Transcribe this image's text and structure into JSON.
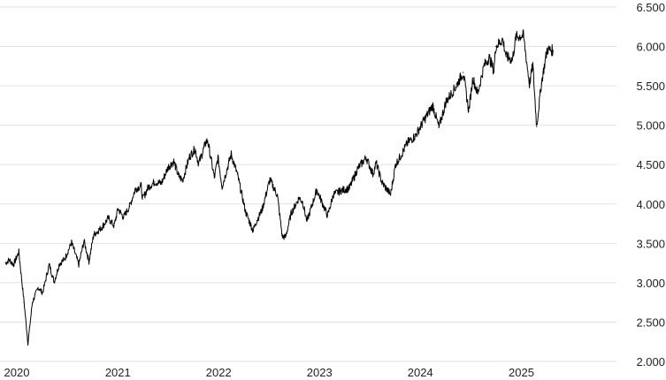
{
  "chart_data": {
    "type": "line",
    "title": "",
    "xlabel": "",
    "ylabel": "",
    "x_tick_labels": [
      "2020",
      "2021",
      "2022",
      "2023",
      "2024",
      "2025"
    ],
    "y_tick_labels": [
      "2.000",
      "2.500",
      "3.000",
      "3.500",
      "4.000",
      "4.500",
      "5.000",
      "5.500",
      "6.000",
      "6.500"
    ],
    "y_ticks": [
      2000,
      2500,
      3000,
      3500,
      4000,
      4500,
      5000,
      5500,
      6000,
      6500
    ],
    "ylim": [
      2000,
      6500
    ],
    "xlim": [
      "2020-01-01",
      "2026-01-01"
    ],
    "grid": "horizontal",
    "line_color": "#000000",
    "grid_color": "#e2e2e2",
    "series": [
      {
        "x": [
          "2020-01-02",
          "2020-01-15",
          "2020-01-31",
          "2020-02-19",
          "2020-03-09",
          "2020-03-23",
          "2020-04-08",
          "2020-04-29",
          "2020-05-15",
          "2020-06-08",
          "2020-06-26",
          "2020-07-15",
          "2020-08-03",
          "2020-08-28",
          "2020-09-23",
          "2020-10-12",
          "2020-10-30",
          "2020-11-16",
          "2020-12-15",
          "2021-01-08",
          "2021-01-29",
          "2021-02-12",
          "2021-03-04",
          "2021-03-26",
          "2021-04-16",
          "2021-05-07",
          "2021-05-12",
          "2021-06-01",
          "2021-06-25",
          "2021-07-19",
          "2021-08-13",
          "2021-09-02",
          "2021-09-20",
          "2021-10-04",
          "2021-10-29",
          "2021-11-18",
          "2021-12-01",
          "2021-12-28",
          "2022-01-03",
          "2022-01-27",
          "2022-02-09",
          "2022-02-24",
          "2022-03-29",
          "2022-04-20",
          "2022-05-20",
          "2022-06-16",
          "2022-06-30",
          "2022-07-19",
          "2022-08-16",
          "2022-09-12",
          "2022-09-30",
          "2022-10-12",
          "2022-11-01",
          "2022-11-30",
          "2022-12-13",
          "2022-12-28",
          "2023-01-17",
          "2023-02-02",
          "2023-03-13",
          "2023-04-03",
          "2023-05-01",
          "2023-05-31",
          "2023-06-30",
          "2023-07-31",
          "2023-08-24",
          "2023-09-05",
          "2023-09-26",
          "2023-10-27",
          "2023-11-14",
          "2023-12-01",
          "2023-12-28",
          "2024-01-24",
          "2024-02-28",
          "2024-03-28",
          "2024-04-19",
          "2024-05-15",
          "2024-06-18",
          "2024-07-16",
          "2024-08-05",
          "2024-08-20",
          "2024-09-06",
          "2024-09-30",
          "2024-10-18",
          "2024-11-04",
          "2024-11-11",
          "2024-12-06",
          "2024-12-19",
          "2025-01-10",
          "2025-01-23",
          "2025-02-19",
          "2025-03-13",
          "2025-03-25",
          "2025-04-08",
          "2025-04-25",
          "2025-05-16",
          "2025-06-06"
        ],
        "y": [
          3250,
          3290,
          3230,
          3390,
          2750,
          2230,
          2750,
          2940,
          2870,
          3230,
          3010,
          3240,
          3300,
          3510,
          3230,
          3530,
          3270,
          3610,
          3700,
          3820,
          3720,
          3940,
          3830,
          3970,
          4190,
          4230,
          4060,
          4210,
          4280,
          4260,
          4470,
          4540,
          4350,
          4300,
          4600,
          4700,
          4510,
          4790,
          4800,
          4330,
          4590,
          4220,
          4630,
          4380,
          3900,
          3660,
          3790,
          3930,
          4310,
          4110,
          3585,
          3580,
          3880,
          4080,
          4020,
          3780,
          4000,
          4180,
          3850,
          4120,
          4170,
          4200,
          4450,
          4590,
          4380,
          4520,
          4270,
          4120,
          4500,
          4600,
          4780,
          4860,
          5080,
          5250,
          4970,
          5300,
          5480,
          5670,
          5180,
          5600,
          5400,
          5760,
          5860,
          5690,
          6000,
          6090,
          5870,
          5830,
          6120,
          6140,
          5520,
          5770,
          4980,
          5530,
          5960,
          5950
        ],
        "values": [
          3250,
          3290,
          3230,
          3390,
          2750,
          2230,
          2750,
          2940,
          2870,
          3230,
          3010,
          3240,
          3300,
          3510,
          3230,
          3530,
          3270,
          3610,
          3700,
          3820,
          3720,
          3940,
          3830,
          3970,
          4190,
          4230,
          4060,
          4210,
          4280,
          4260,
          4470,
          4540,
          4350,
          4300,
          4600,
          4700,
          4510,
          4790,
          4800,
          4330,
          4590,
          4220,
          4630,
          4380,
          3900,
          3660,
          3790,
          3930,
          4310,
          4110,
          3585,
          3580,
          3880,
          4080,
          4020,
          3780,
          4000,
          4180,
          3850,
          4120,
          4170,
          4200,
          4450,
          4590,
          4380,
          4520,
          4270,
          4120,
          4500,
          4600,
          4780,
          4860,
          5080,
          5250,
          4970,
          5300,
          5480,
          5670,
          5180,
          5600,
          5400,
          5760,
          5860,
          5690,
          6000,
          6090,
          5870,
          5830,
          6120,
          6140,
          5520,
          5770,
          4980,
          5530,
          5960,
          5950
        ]
      }
    ]
  }
}
